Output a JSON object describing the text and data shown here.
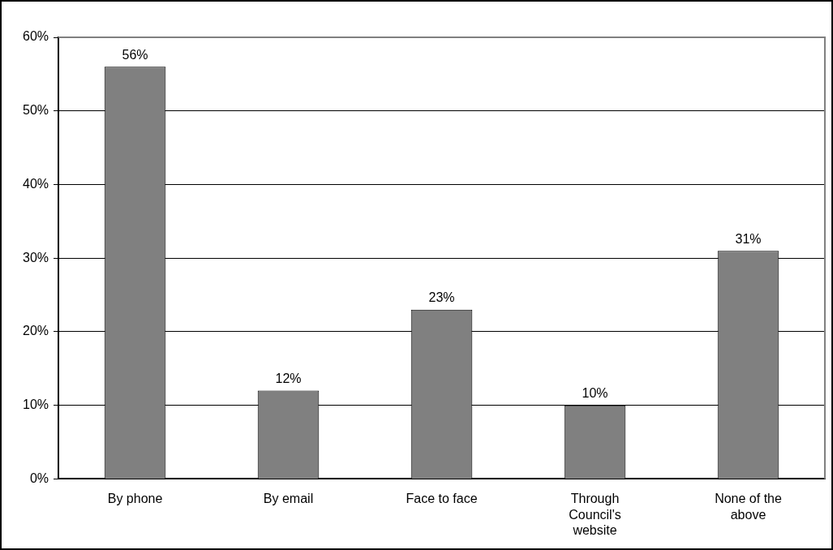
{
  "chart_data": {
    "type": "bar",
    "categories": [
      "By phone",
      "By email",
      "Face to face",
      "Through Council's website",
      "None of the above"
    ],
    "values": [
      56,
      12,
      23,
      10,
      31
    ],
    "color": "#808080",
    "value_labels": [
      "56%",
      "12%",
      "23%",
      "10%",
      "31%"
    ],
    "ylim": [
      0,
      60
    ],
    "yticks": [
      {
        "value": 0,
        "label": "0%"
      },
      {
        "value": 10,
        "label": "10%"
      },
      {
        "value": 20,
        "label": "20%"
      },
      {
        "value": 30,
        "label": "30%"
      },
      {
        "value": 40,
        "label": "40%"
      },
      {
        "value": 50,
        "label": "50%"
      },
      {
        "value": 60,
        "label": "60%"
      }
    ],
    "grid": "y",
    "legend": false
  }
}
